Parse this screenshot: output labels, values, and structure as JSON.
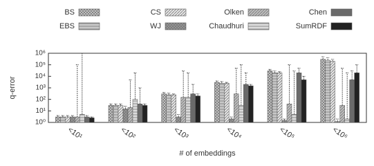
{
  "chart_data": {
    "type": "bar",
    "x_label": "# of embeddings",
    "y_label": "q-error",
    "categories": [
      "<10¹",
      "<10²",
      "<10³",
      "<10⁴",
      "<10⁵",
      "<10⁶"
    ],
    "log_y": true,
    "ylim": [
      1,
      1000000
    ],
    "yticks": [
      {
        "value": 1,
        "label": "10⁰"
      },
      {
        "value": 10,
        "label": "10¹"
      },
      {
        "value": 100,
        "label": "10²"
      },
      {
        "value": 1000,
        "label": "10³"
      },
      {
        "value": 10000,
        "label": "10⁴"
      },
      {
        "value": 100000,
        "label": "10⁵"
      },
      {
        "value": 1000000,
        "label": "10⁶"
      }
    ],
    "series": [
      {
        "name": "BS",
        "color": "#d0d0d0",
        "pattern": "cross",
        "values": [
          3,
          30,
          300,
          3000,
          30000,
          300000
        ],
        "upper": [
          4,
          40,
          400,
          4000,
          40000,
          500000
        ]
      },
      {
        "name": "EBS",
        "color": "#c8c8c8",
        "pattern": "horizontal",
        "values": [
          3,
          30,
          250,
          2500,
          20000,
          250000
        ],
        "upper": [
          4,
          40,
          350,
          3500,
          30000,
          400000
        ]
      },
      {
        "name": "CS",
        "color": "#e6e6e6",
        "pattern": "diagonal",
        "values": [
          3,
          30,
          250,
          2500,
          20000,
          200000
        ],
        "upper": [
          4,
          40,
          300,
          3000,
          25000,
          300000
        ]
      },
      {
        "name": "WJ",
        "color": "#9a9a9a",
        "pattern": "cross",
        "values": [
          3,
          15,
          3,
          2,
          1.5,
          1.2
        ],
        "upper": [
          4,
          25,
          5,
          3,
          2,
          2
        ]
      },
      {
        "name": "Olken",
        "color": "#bdbdbd",
        "pattern": "diagonal",
        "values": [
          3,
          20,
          150,
          300,
          40,
          30
        ],
        "upper": [
          100000,
          5000,
          30000,
          50000,
          100000,
          50000
        ]
      },
      {
        "name": "Chaudhuri",
        "color": "#dcdcdc",
        "pattern": "horizontal",
        "values": [
          5,
          100,
          150,
          30,
          5,
          2
        ],
        "upper": [
          1000000,
          20000,
          20000,
          100000,
          30000,
          20000
        ]
      },
      {
        "name": "Chen",
        "color": "#6a6a6a",
        "pattern": "none",
        "values": [
          3,
          40,
          300,
          2000,
          20000,
          5000
        ],
        "upper": [
          4,
          1000,
          2000,
          20000,
          50000,
          30000
        ]
      },
      {
        "name": "SumRDF",
        "color": "#222222",
        "pattern": "none",
        "values": [
          2.5,
          30,
          200,
          1500,
          5000,
          20000
        ],
        "upper": [
          3,
          40,
          300,
          2000,
          10000,
          100000
        ]
      }
    ]
  }
}
